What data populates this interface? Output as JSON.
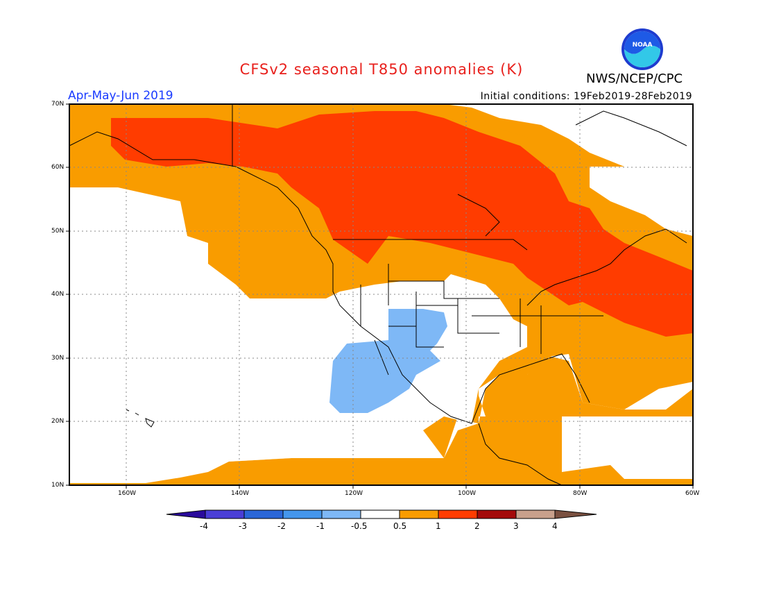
{
  "header": {
    "title": "CFSv2 seasonal T850 anomalies (K)",
    "period": "Apr-May-Jun 2019",
    "initial_conditions": "Initial conditions: 19Feb2019-28Feb2019",
    "agency": "NWS/NCEP/CPC",
    "logo_text": "NOAA"
  },
  "map": {
    "lat_labels": [
      "70N",
      "60N",
      "50N",
      "40N",
      "30N",
      "20N",
      "10N"
    ],
    "lon_labels": [
      "160W",
      "140W",
      "120W",
      "100W",
      "80W",
      "60W"
    ]
  },
  "colorbar": {
    "labels": [
      "-4",
      "-3",
      "-2",
      "-1",
      "-0.5",
      "0.5",
      "1",
      "2",
      "3",
      "4"
    ],
    "colors": [
      "#2a0a9c",
      "#4a3ed6",
      "#2a66d8",
      "#4496ec",
      "#7eb8f6",
      "#ffffff",
      "#f99c00",
      "#ff3c00",
      "#a40a0a",
      "#c8a08c",
      "#7a5040"
    ]
  }
}
